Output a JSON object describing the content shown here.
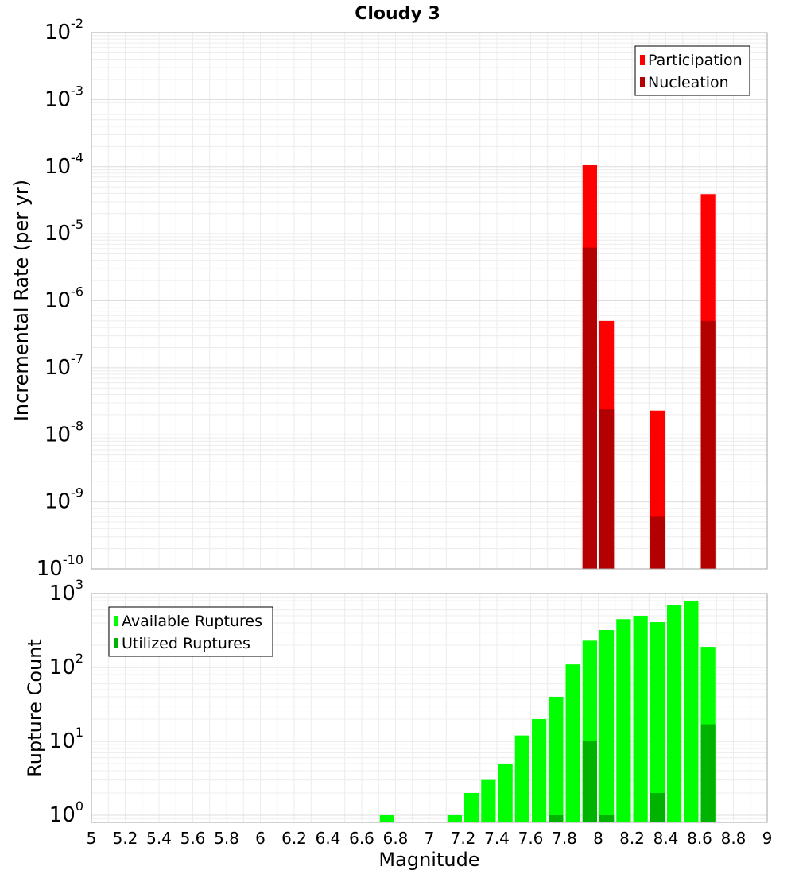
{
  "chart_data": [
    {
      "type": "bar",
      "title": "Cloudy 3",
      "xlabel": "Magnitude",
      "ylabel": "Incremental Rate (per yr)",
      "yscale": "log",
      "ylim": [
        1e-10,
        0.01
      ],
      "xlim": [
        5,
        9
      ],
      "grid": true,
      "legend_position": "top-right",
      "y_tick_exponents": [
        "-10",
        "-9",
        "-8",
        "-7",
        "-6",
        "-5",
        "-4",
        "-3",
        "-2"
      ],
      "series": [
        {
          "name": "Participation",
          "color": "#ff0000",
          "x": [
            7.95,
            8.05,
            8.35,
            8.65
          ],
          "values": [
            0.000105,
            5e-07,
            2.3e-08,
            3.9e-05
          ]
        },
        {
          "name": "Nucleation",
          "color": "#b30000",
          "x": [
            7.95,
            8.05,
            8.35,
            8.65
          ],
          "values": [
            6.2e-06,
            2.4e-08,
            6e-10,
            5e-07
          ]
        }
      ]
    },
    {
      "type": "bar",
      "xlabel": "Magnitude",
      "ylabel": "Rupture Count",
      "yscale": "log",
      "ylim": [
        0.8,
        1000
      ],
      "xlim": [
        5,
        9
      ],
      "grid": true,
      "legend_position": "top-left",
      "y_tick_exponents": [
        "0",
        "1",
        "2",
        "3"
      ],
      "x_tick_labels": [
        "5",
        "5.2",
        "5.4",
        "5.6",
        "5.8",
        "6",
        "6.2",
        "6.4",
        "6.6",
        "6.8",
        "7",
        "7.2",
        "7.4",
        "7.6",
        "7.8",
        "8",
        "8.2",
        "8.4",
        "8.6",
        "8.8",
        "9"
      ],
      "series": [
        {
          "name": "Available Ruptures",
          "color": "#00ff00",
          "x": [
            6.75,
            7.15,
            7.25,
            7.35,
            7.45,
            7.55,
            7.65,
            7.75,
            7.85,
            7.95,
            8.05,
            8.15,
            8.25,
            8.35,
            8.45,
            8.55,
            8.65
          ],
          "values": [
            1,
            1,
            2,
            3,
            5,
            12,
            20,
            40,
            110,
            230,
            320,
            450,
            500,
            410,
            700,
            780,
            190
          ]
        },
        {
          "name": "Utilized Ruptures",
          "color": "#00b300",
          "x": [
            7.75,
            7.95,
            8.05,
            8.35,
            8.65
          ],
          "values": [
            1,
            10,
            1,
            2,
            17
          ]
        }
      ]
    }
  ]
}
